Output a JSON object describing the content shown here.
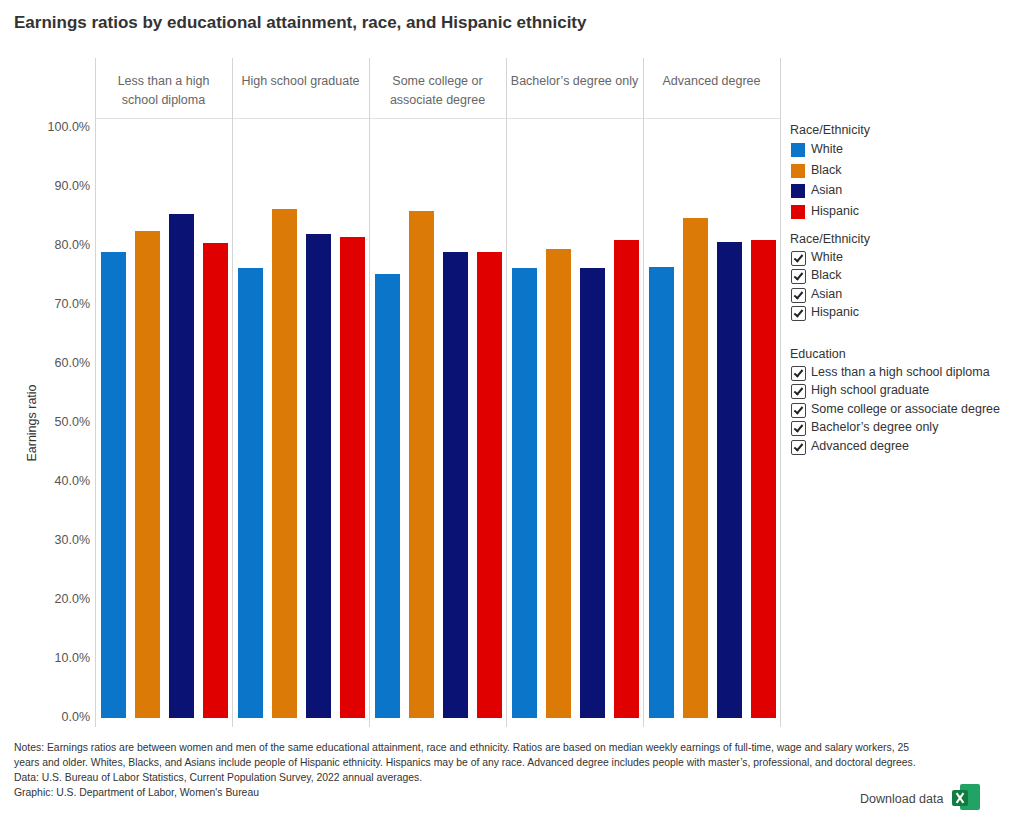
{
  "chart_data": {
    "type": "bar",
    "title": "Earnings ratios by educational attainment, race, and Hispanic ethnicity",
    "y_label": "Earnings ratio",
    "categories": [
      "Less than a high school diploma",
      "High school graduate",
      "Some college or associate degree",
      "Bachelor’s degree only",
      "Advanced degree"
    ],
    "series": [
      {
        "name": "White",
        "color": "#0b76c9",
        "values": [
          79.0,
          76.3,
          75.3,
          76.3,
          76.5
        ]
      },
      {
        "name": "Black",
        "color": "#db7a07",
        "values": [
          82.5,
          86.2,
          86.0,
          79.5,
          84.7
        ]
      },
      {
        "name": "Asian",
        "color": "#0a1273",
        "values": [
          85.5,
          82.0,
          79.0,
          76.3,
          80.7
        ]
      },
      {
        "name": "Hispanic",
        "color": "#e00000",
        "values": [
          80.5,
          81.5,
          79.0,
          81.0,
          81.0
        ]
      }
    ],
    "ylim": [
      0,
      100
    ],
    "yticks": [
      {
        "value": 0,
        "label": "0.0%"
      },
      {
        "value": 10,
        "label": "10.0%"
      },
      {
        "value": 20,
        "label": "20.0%"
      },
      {
        "value": 30,
        "label": "30.0%"
      },
      {
        "value": 40,
        "label": "40.0%"
      },
      {
        "value": 50,
        "label": "50.0%"
      },
      {
        "value": 60,
        "label": "60.0%"
      },
      {
        "value": 70,
        "label": "70.0%"
      },
      {
        "value": 80,
        "label": "80.0%"
      },
      {
        "value": 90,
        "label": "90.0%"
      },
      {
        "value": 100,
        "label": "100.0%"
      }
    ],
    "grid": false,
    "legend": "right",
    "legend_title": "Race/Ethnicity",
    "filter_titles": [
      "Race/Ethnicity",
      "Education"
    ],
    "notes": [
      "Notes: Earnings ratios are between women and men of the same educational attainment, race and ethnicity. Ratios are based on median weekly earnings of full-time, wage and salary workers, 25",
      "years and older. Whites, Blacks, and Asians include people of Hispanic ethnicity. Hispanics may be of any race. Advanced degree includes people with master’s, professional, and doctoral degrees.",
      "Data: U.S. Bureau of Labor Statistics, Current Population Survey, 2022 annual averages.",
      "Graphic: U.S. Department of Labor, Women's Bureau"
    ],
    "download_label": "Download data"
  }
}
